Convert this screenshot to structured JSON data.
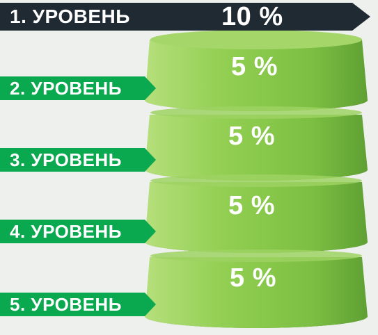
{
  "levels": [
    {
      "label": "1. УРОВЕНЬ",
      "value": "10 %"
    },
    {
      "label": "2. УРОВЕНЬ",
      "value": "5 %"
    },
    {
      "label": "3. УРОВЕНЬ",
      "value": "5 %"
    },
    {
      "label": "4. УРОВЕНЬ",
      "value": "5 %"
    },
    {
      "label": "5. УРОВЕНЬ",
      "value": "5 %"
    }
  ],
  "colors": {
    "top_bar": "#1f2a33",
    "arrow_green": "#0aa84f",
    "tier_light": "#a9d86a",
    "tier_mid": "#84c84a",
    "tier_dark": "#4f8f2e",
    "background": "#eef0ee"
  }
}
